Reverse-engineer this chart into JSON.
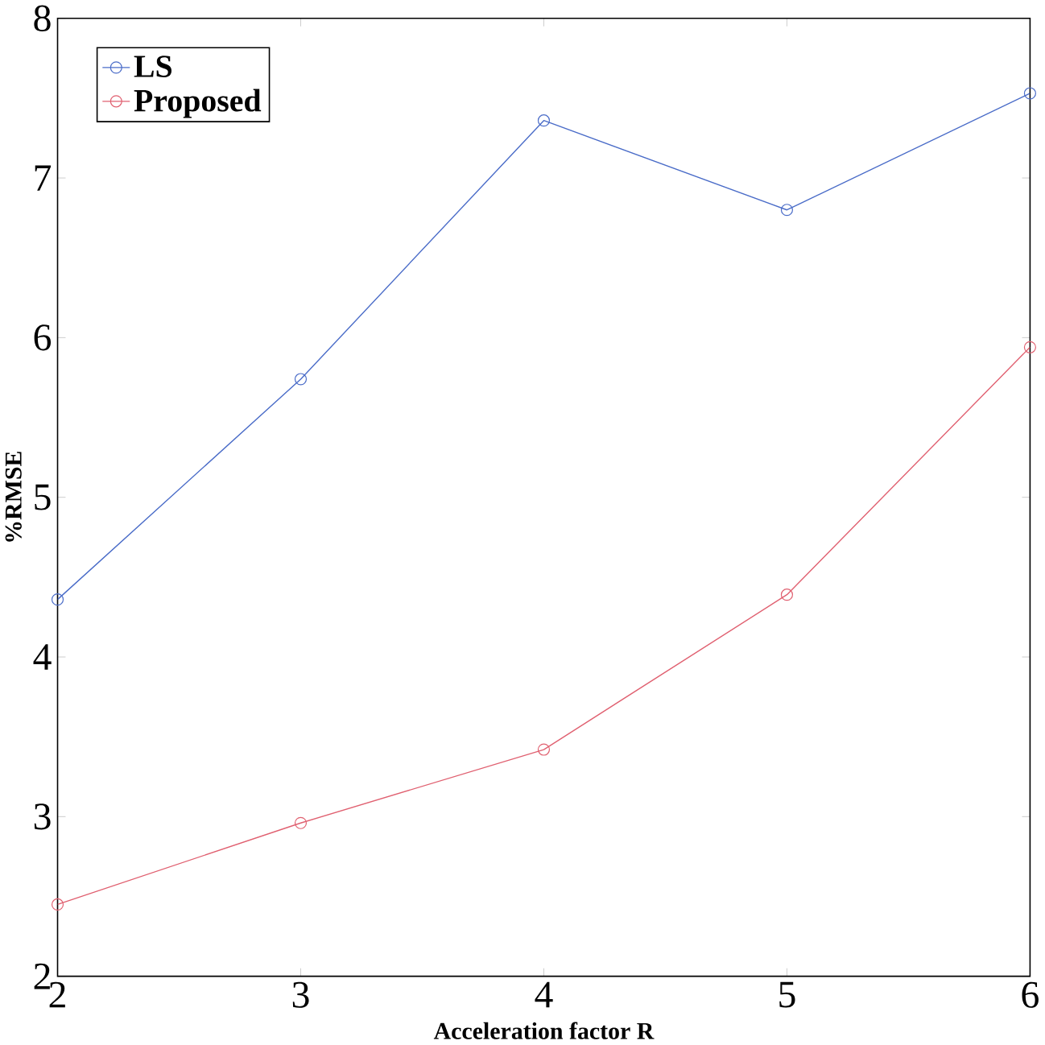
{
  "chart_data": {
    "type": "line",
    "xlabel": "Acceleration factor R",
    "ylabel": "%RMSE",
    "x": [
      2,
      3,
      4,
      5,
      6
    ],
    "xlim": [
      2,
      6
    ],
    "xticks": [
      2,
      3,
      4,
      5,
      6
    ],
    "ylim": [
      2,
      8
    ],
    "yticks": [
      2,
      3,
      4,
      5,
      6,
      7,
      8
    ],
    "series": [
      {
        "name": "LS",
        "color": "#4a6cc8",
        "values": [
          4.36,
          5.74,
          7.36,
          6.8,
          7.53
        ]
      },
      {
        "name": "Proposed",
        "color": "#e06070",
        "values": [
          2.45,
          2.96,
          3.42,
          4.39,
          5.94
        ]
      }
    ],
    "marker": "circle",
    "legend": "top left",
    "grid": false
  }
}
